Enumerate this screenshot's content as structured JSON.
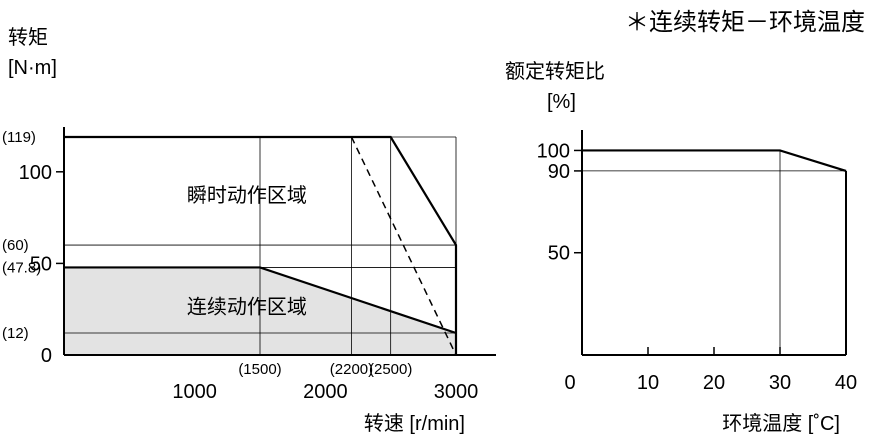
{
  "header": {
    "subtitle": "＊连续转矩－环境温度"
  },
  "chart_data": [
    {
      "type": "line",
      "ylabel_lines": [
        "转矩",
        "[N·m]"
      ],
      "xlabel": "转速 [r/min]",
      "xlim": [
        0,
        3000
      ],
      "ylim": [
        0,
        119
      ],
      "x_ticks": [
        {
          "value": 1000,
          "label": "1000"
        },
        {
          "value": 2000,
          "label": "2000"
        },
        {
          "value": 3000,
          "label": "3000"
        }
      ],
      "x_ref_labels": [
        {
          "value": 1500,
          "label": "(1500)"
        },
        {
          "value": 2200,
          "label": "(2200)"
        },
        {
          "value": 2500,
          "label": "(2500)"
        }
      ],
      "y_ticks": [
        {
          "value": 0,
          "label": "0"
        },
        {
          "value": 50,
          "label": "50"
        },
        {
          "value": 100,
          "label": "100"
        }
      ],
      "y_ref_labels": [
        {
          "value": 119,
          "label": "(119)"
        },
        {
          "value": 60,
          "label": "(60)"
        },
        {
          "value": 47.8,
          "label": "(47.8)"
        },
        {
          "value": 12,
          "label": "(12)"
        }
      ],
      "region_labels": [
        {
          "name": "instantaneous",
          "text": "瞬时动作区域",
          "x": 1400,
          "y": 88
        },
        {
          "name": "continuous",
          "text": "连续动作区域",
          "x": 1400,
          "y": 27
        }
      ],
      "series": [
        {
          "role": "instantaneous-boundary",
          "x": [
            0,
            2500,
            3000,
            3000
          ],
          "y": [
            119,
            119,
            60,
            0
          ]
        },
        {
          "role": "continuous-boundary",
          "x": [
            0,
            1500,
            3000
          ],
          "y": [
            47.8,
            47.8,
            12
          ]
        },
        {
          "role": "dashed-limit",
          "x": [
            2200,
            3000
          ],
          "y": [
            119,
            0
          ]
        }
      ],
      "grid": {
        "x": [
          1500,
          2200,
          2500,
          3000
        ],
        "y": [
          119,
          60,
          47.8,
          12
        ]
      }
    },
    {
      "type": "line",
      "ylabel_lines": [
        "额定转矩比",
        "[%]"
      ],
      "xlabel": "环境温度 [˚C]",
      "xlim": [
        0,
        40
      ],
      "ylim": [
        0,
        110
      ],
      "x_ticks": [
        {
          "value": 0,
          "label": "0"
        },
        {
          "value": 10,
          "label": "10"
        },
        {
          "value": 20,
          "label": "20"
        },
        {
          "value": 30,
          "label": "30"
        },
        {
          "value": 40,
          "label": "40"
        }
      ],
      "y_ticks": [
        {
          "value": 100,
          "label": "100"
        },
        {
          "value": 90,
          "label": "90"
        },
        {
          "value": 50,
          "label": "50"
        }
      ],
      "series": [
        {
          "role": "rated-torque-ratio",
          "x": [
            0,
            30,
            40
          ],
          "y": [
            100,
            100,
            90
          ]
        }
      ],
      "grid": {
        "x": [
          30
        ],
        "y": [
          90
        ]
      }
    }
  ]
}
